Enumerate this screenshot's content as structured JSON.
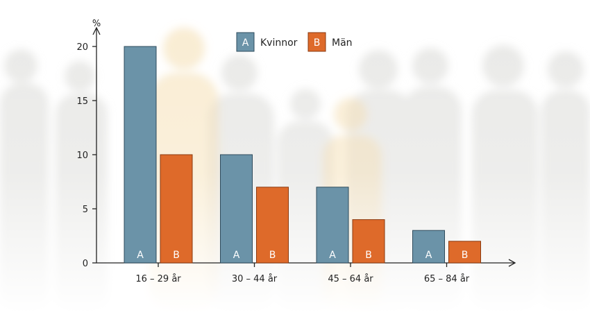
{
  "chart_data": {
    "type": "bar",
    "ylabel": "%",
    "xlabel": "",
    "title": "",
    "ylim": [
      0,
      20
    ],
    "yticks": [
      0,
      5,
      10,
      15,
      20
    ],
    "categories": [
      "16 – 29 år",
      "30 – 44 år",
      "45 – 64 år",
      "65 – 84 år"
    ],
    "series": [
      {
        "name": "Kvinnor",
        "marker": "A",
        "color": "#6b93a8",
        "values": [
          20,
          10,
          7,
          3
        ]
      },
      {
        "name": "Män",
        "marker": "B",
        "color": "#de6a2a",
        "values": [
          10,
          7,
          4,
          2
        ]
      }
    ],
    "legend_position": "top-center",
    "grid": false,
    "background": "faded crowd silhouettes"
  }
}
